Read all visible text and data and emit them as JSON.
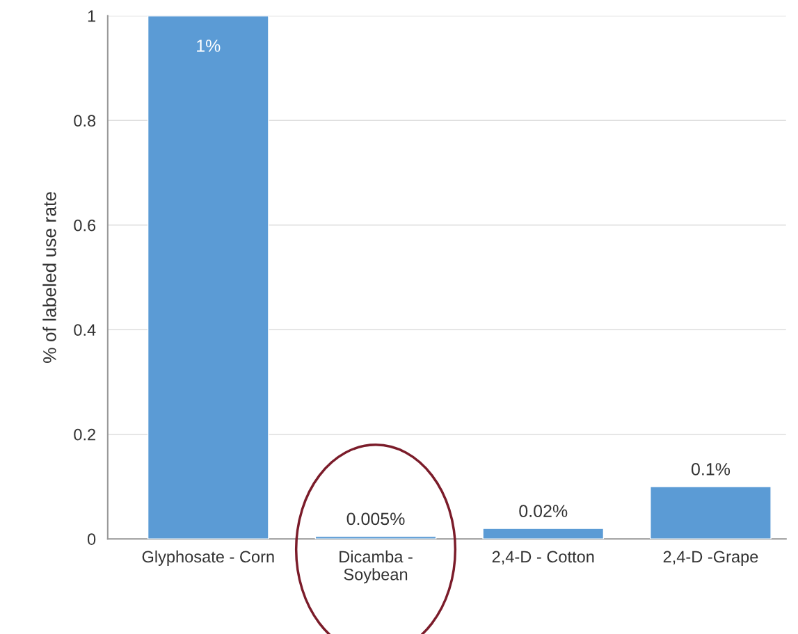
{
  "chart_data": {
    "type": "bar",
    "ylabel": "% of labeled use rate",
    "categories": [
      "Glyphosate - Corn",
      "Dicamba -\nSoybean",
      "2,4-D - Cotton",
      "2,4-D -Grape"
    ],
    "values": [
      1,
      0.005,
      0.02,
      0.1
    ],
    "value_labels": [
      "1%",
      "0.005%",
      "0.02%",
      "0.1%"
    ],
    "color": "#5b9bd5",
    "ylim": [
      0,
      1
    ],
    "yticks": [
      0,
      0.2,
      0.4,
      0.6,
      0.8,
      1
    ],
    "grid": "y",
    "legend": false
  }
}
